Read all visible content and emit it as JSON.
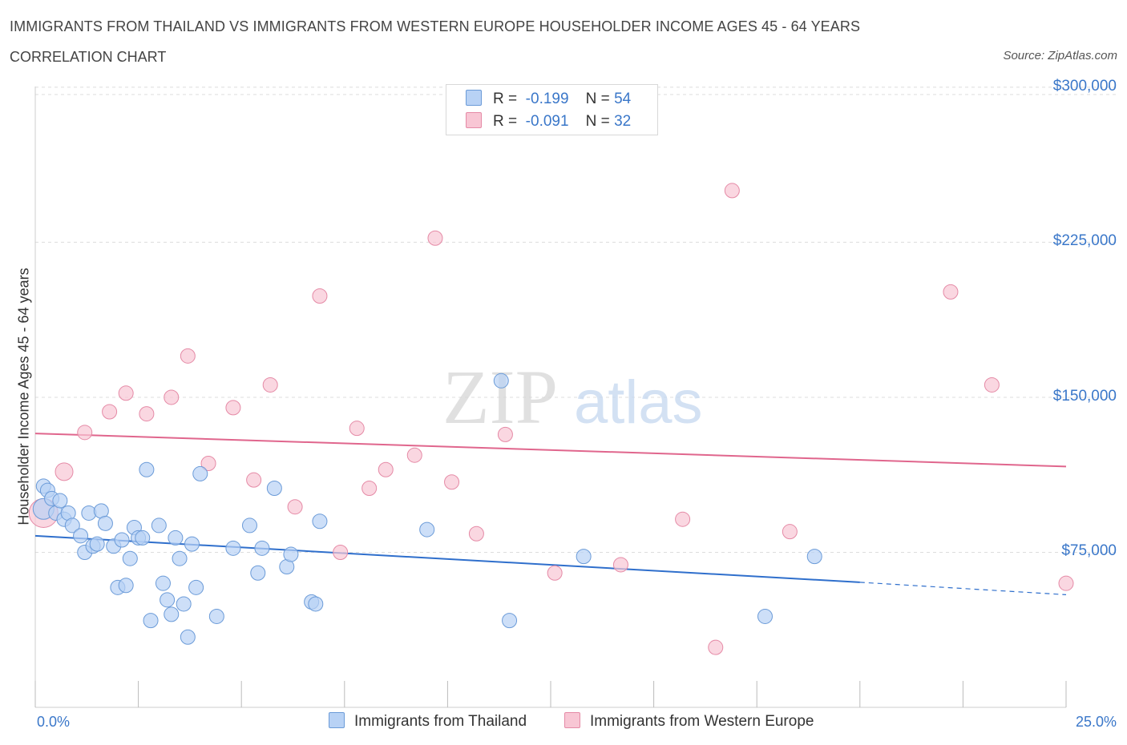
{
  "title": "IMMIGRANTS FROM THAILAND VS IMMIGRANTS FROM WESTERN EUROPE HOUSEHOLDER INCOME AGES 45 - 64 YEARS",
  "subtitle": "CORRELATION CHART",
  "source": "Source: ZipAtlas.com",
  "watermark": {
    "zip": "ZIP",
    "atlas": "atlas"
  },
  "legend": {
    "r_label": "R =",
    "n_label": "N =",
    "rows": [
      {
        "r": "-0.199",
        "n": "54"
      },
      {
        "r": "-0.091",
        "n": "32"
      }
    ]
  },
  "colors": {
    "thailand_fill": "#b8d2f5",
    "thailand_stroke": "#6b9bd8",
    "thailand_line": "#2f6fcc",
    "we_fill": "#f8c6d4",
    "we_stroke": "#e58aa6",
    "we_line": "#e0668d",
    "grid": "#dddddd",
    "tick_text": "#3a77c9"
  },
  "chart_data": {
    "type": "scatter",
    "ylabel": "Householder Income Ages 45 - 64 years",
    "xlim": [
      0,
      25
    ],
    "ylim": [
      0,
      305000
    ],
    "x_tick_labels": [
      "0.0%",
      "25.0%"
    ],
    "y_ticks": [
      {
        "value": 75000,
        "label": "$75,000"
      },
      {
        "value": 150000,
        "label": "$150,000"
      },
      {
        "value": 225000,
        "label": "$225,000"
      },
      {
        "value": 300000,
        "label": "$300,000"
      }
    ],
    "grid": true,
    "legend_position": "top-center",
    "series": [
      {
        "name": "Immigrants from Thailand",
        "trend": {
          "x0": 0,
          "y0": 83000,
          "x1": 20,
          "y1": 60500,
          "dash_to_x": 25,
          "dash_to_y": 54500
        },
        "points": [
          [
            0.2,
            96000
          ],
          [
            0.2,
            107000
          ],
          [
            0.3,
            105000
          ],
          [
            0.4,
            101000
          ],
          [
            0.5,
            94000
          ],
          [
            0.6,
            100000
          ],
          [
            0.7,
            91000
          ],
          [
            0.8,
            94000
          ],
          [
            0.9,
            88000
          ],
          [
            1.1,
            83000
          ],
          [
            1.2,
            75000
          ],
          [
            1.3,
            94000
          ],
          [
            1.4,
            78000
          ],
          [
            1.5,
            79000
          ],
          [
            1.6,
            95000
          ],
          [
            1.7,
            89000
          ],
          [
            1.9,
            78000
          ],
          [
            2.0,
            58000
          ],
          [
            2.1,
            81000
          ],
          [
            2.2,
            59000
          ],
          [
            2.3,
            72000
          ],
          [
            2.4,
            87000
          ],
          [
            2.5,
            82000
          ],
          [
            2.6,
            82000
          ],
          [
            2.7,
            115000
          ],
          [
            2.8,
            42000
          ],
          [
            3.0,
            88000
          ],
          [
            3.1,
            60000
          ],
          [
            3.2,
            52000
          ],
          [
            3.3,
            45000
          ],
          [
            3.4,
            82000
          ],
          [
            3.5,
            72000
          ],
          [
            3.6,
            50000
          ],
          [
            3.7,
            34000
          ],
          [
            3.8,
            79000
          ],
          [
            3.9,
            58000
          ],
          [
            4.0,
            113000
          ],
          [
            4.4,
            44000
          ],
          [
            4.8,
            77000
          ],
          [
            5.2,
            88000
          ],
          [
            5.4,
            65000
          ],
          [
            5.5,
            77000
          ],
          [
            5.8,
            106000
          ],
          [
            6.1,
            68000
          ],
          [
            6.2,
            74000
          ],
          [
            6.7,
            51000
          ],
          [
            6.8,
            50000
          ],
          [
            6.9,
            90000
          ],
          [
            9.5,
            86000
          ],
          [
            11.3,
            158000
          ],
          [
            11.5,
            42000
          ],
          [
            13.3,
            73000
          ],
          [
            17.7,
            44000
          ],
          [
            18.9,
            73000
          ]
        ]
      },
      {
        "name": "Immigrants from Western Europe",
        "trend": {
          "x0": 0,
          "y0": 132500,
          "x1": 25,
          "y1": 116500
        },
        "points": [
          [
            0.2,
            94000
          ],
          [
            0.7,
            114000
          ],
          [
            1.2,
            133000
          ],
          [
            1.8,
            143000
          ],
          [
            2.2,
            152000
          ],
          [
            2.7,
            142000
          ],
          [
            3.3,
            150000
          ],
          [
            3.7,
            170000
          ],
          [
            4.2,
            118000
          ],
          [
            4.8,
            145000
          ],
          [
            5.3,
            110000
          ],
          [
            5.7,
            156000
          ],
          [
            6.3,
            97000
          ],
          [
            6.9,
            199000
          ],
          [
            7.4,
            75000
          ],
          [
            7.8,
            135000
          ],
          [
            8.1,
            106000
          ],
          [
            8.5,
            115000
          ],
          [
            9.2,
            122000
          ],
          [
            9.7,
            227000
          ],
          [
            10.1,
            109000
          ],
          [
            10.7,
            84000
          ],
          [
            11.4,
            132000
          ],
          [
            12.6,
            65000
          ],
          [
            14.2,
            69000
          ],
          [
            15.7,
            91000
          ],
          [
            16.5,
            29000
          ],
          [
            16.9,
            250000
          ],
          [
            18.3,
            85000
          ],
          [
            22.2,
            201000
          ],
          [
            23.2,
            156000
          ],
          [
            25.0,
            60000
          ]
        ]
      }
    ]
  }
}
